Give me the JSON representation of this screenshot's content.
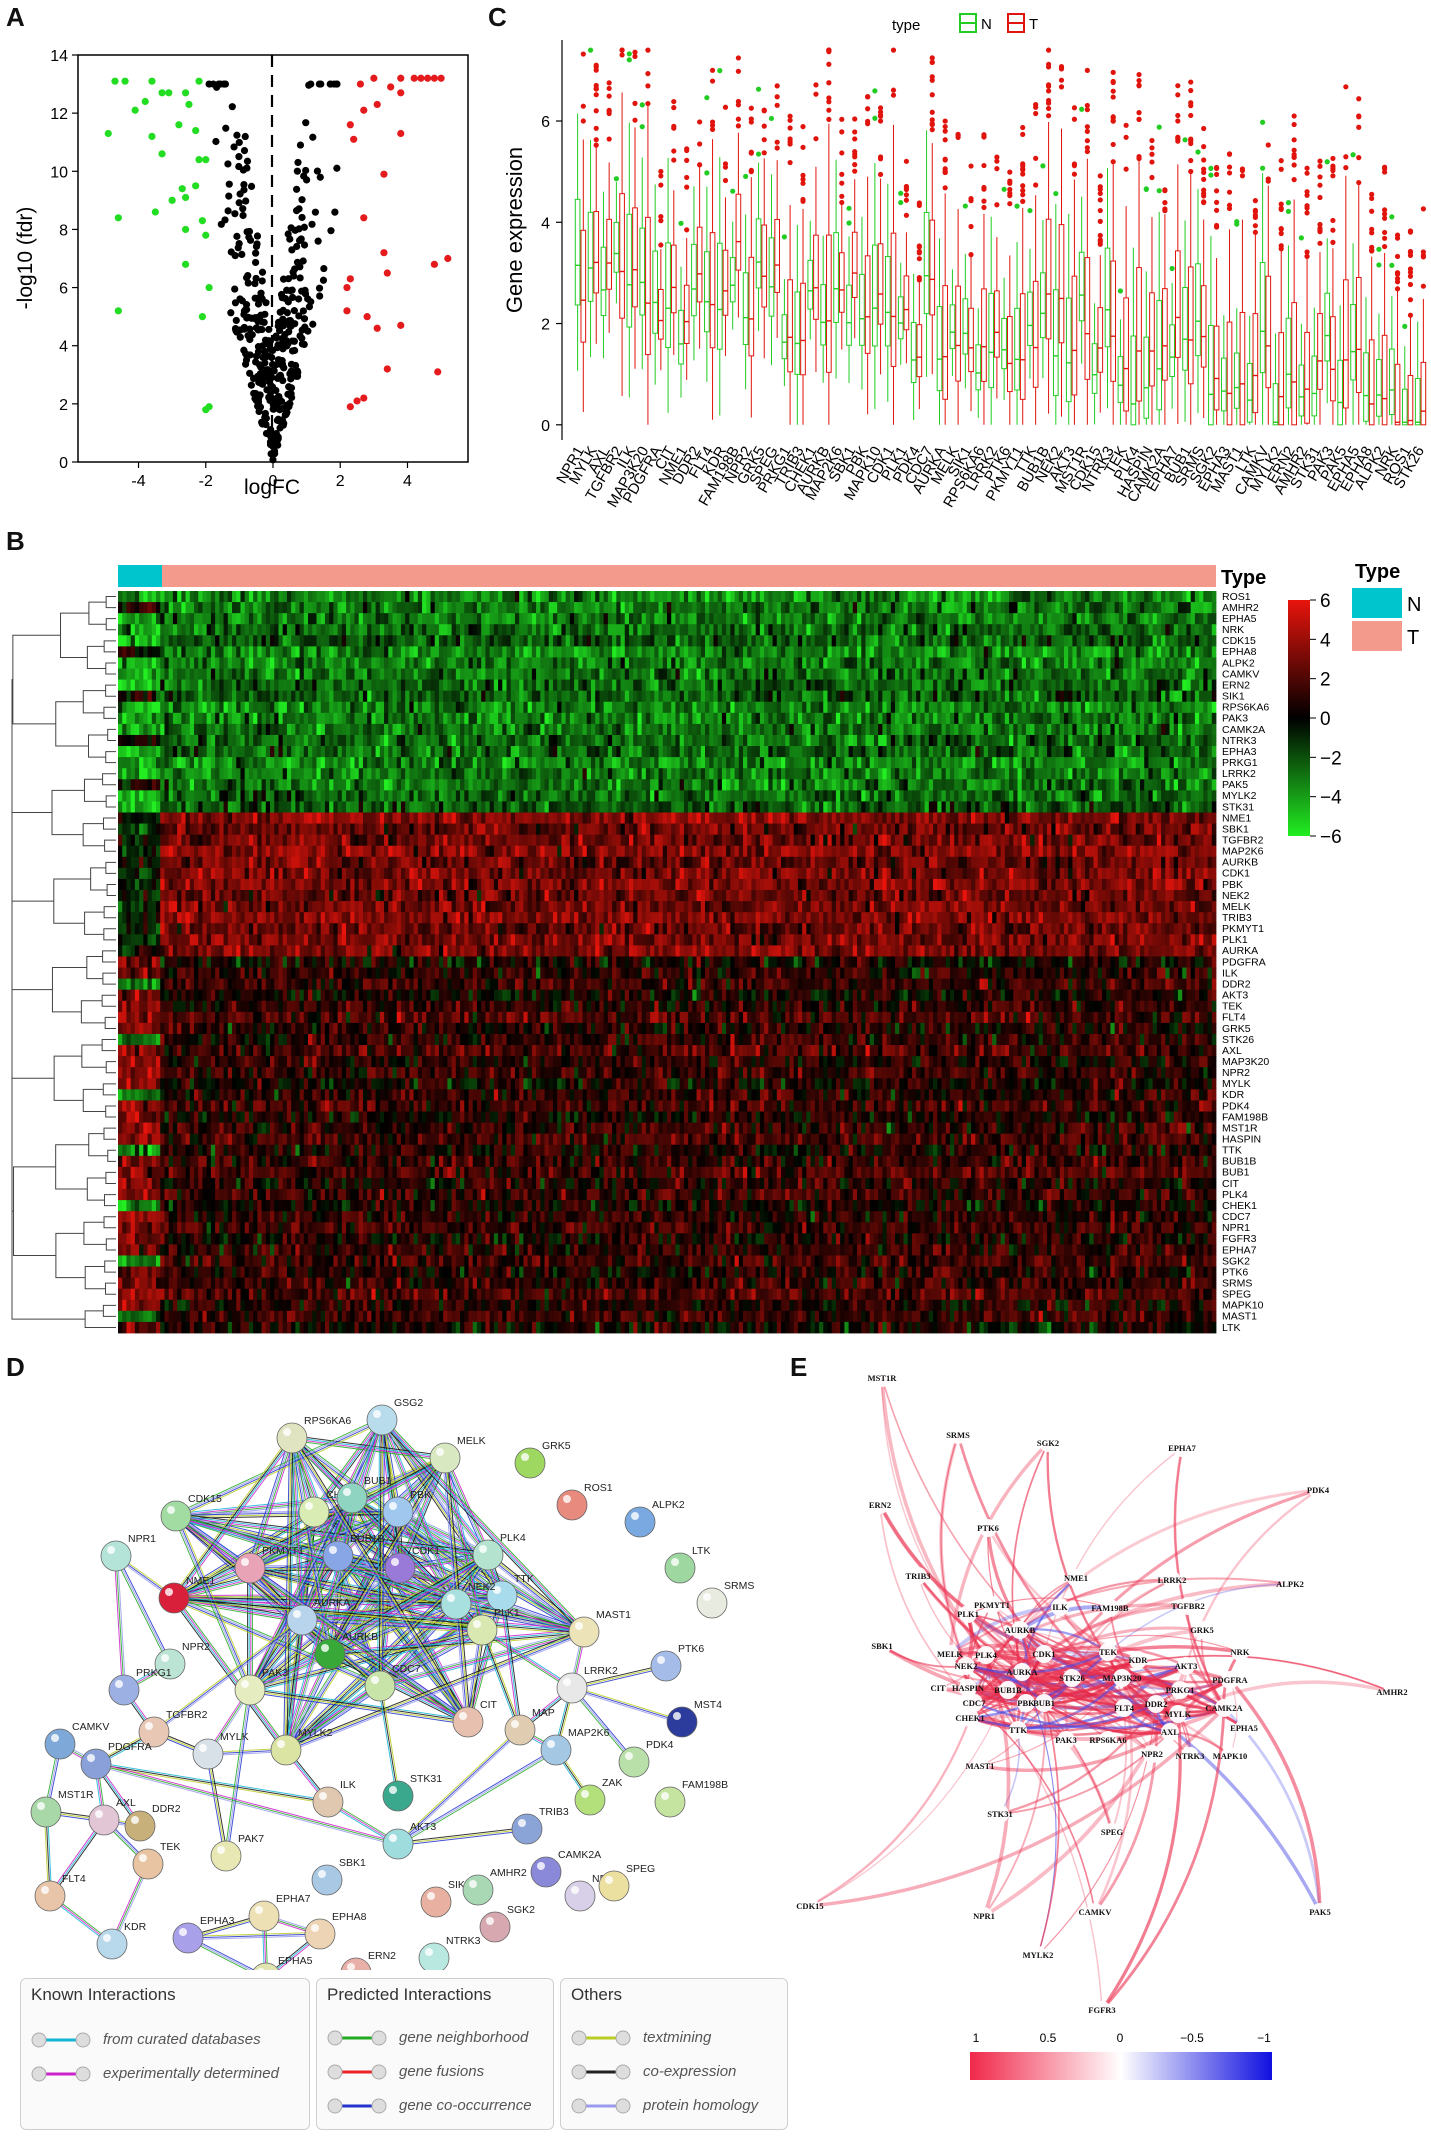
{
  "panels": {
    "a": "A",
    "b": "B",
    "c": "C",
    "d": "D",
    "e": "E"
  },
  "colors": {
    "up": "#e41a1c",
    "down": "#22dd22",
    "ns": "#000000",
    "normal": "#00c5cd",
    "tumor": "#f49a8c",
    "box_n": "#22cc22",
    "box_t": "#e0140c"
  },
  "chart_data": [
    {
      "panel": "A",
      "type": "scatter",
      "xlabel": "logFC",
      "ylabel": "-log10 (fdr)",
      "xlim": [
        -5.8,
        5.8
      ],
      "ylim": [
        0,
        14
      ],
      "xticks": [
        -4,
        -2,
        0,
        2,
        4
      ],
      "yticks": [
        0,
        2,
        4,
        6,
        8,
        10,
        12,
        14
      ],
      "threshold_lines": [
        "logFC = 0 (dashed)"
      ],
      "note": "volcano plot: green = down-regulated, red = up-regulated, black = not significant"
    },
    {
      "panel": "B",
      "type": "heatmap",
      "column_annotation_title": "Type",
      "legend_title": "Type",
      "legend_entries": [
        "N",
        "T"
      ],
      "color_scale_ticks": [
        6,
        4,
        2,
        0,
        -2,
        -4,
        -6
      ],
      "rows": [
        "ROS1",
        "AMHR2",
        "EPHA5",
        "NRK",
        "CDK15",
        "EPHA8",
        "ALPK2",
        "CAMKV",
        "ERN2",
        "SIK1",
        "RPS6KA6",
        "PAK3",
        "CAMK2A",
        "NTRK3",
        "EPHA3",
        "PRKG1",
        "LRRK2",
        "PAK5",
        "MYLK2",
        "STK31",
        "NME1",
        "SBK1",
        "TGFBR2",
        "MAP2K6",
        "AURKB",
        "CDK1",
        "PBK",
        "NEK2",
        "MELK",
        "TRIB3",
        "PKMYT1",
        "PLK1",
        "AURKA",
        "PDGFRA",
        "ILK",
        "DDR2",
        "AKT3",
        "TEK",
        "FLT4",
        "GRK5",
        "STK26",
        "AXL",
        "MAP3K20",
        "NPR2",
        "MYLK",
        "KDR",
        "PDK4",
        "FAM198B",
        "MST1R",
        "HASPIN",
        "TTK",
        "BUB1B",
        "BUB1",
        "CIT",
        "PLK4",
        "CHEK1",
        "CDC7",
        "NPR1",
        "FGFR3",
        "EPHA7",
        "SGK2",
        "PTK6",
        "SRMS",
        "SPEG",
        "MAPK10",
        "MAST1",
        "LTK"
      ],
      "row_groups_expression": "rows 1-20 low (green), rows 21-33 high (red), rows 34-67 mixed"
    },
    {
      "panel": "C",
      "type": "box",
      "legend_title": "type",
      "series": [
        {
          "name": "N"
        },
        {
          "name": "T"
        }
      ],
      "ylabel": "Gene expression",
      "ylim": [
        -0.3,
        7.6
      ],
      "yticks": [
        0,
        2,
        4,
        6
      ],
      "categories": [
        "NPR1",
        "MYLK",
        "AXL",
        "TGFBR2",
        "ILK",
        "MAP3K20",
        "PDGFRA",
        "CIT",
        "NME1",
        "DDR2",
        "FLT4",
        "KDR",
        "FAM198B",
        "NPR2",
        "GRK5",
        "SPEG",
        "PRKG1",
        "TRIB3",
        "CHEK1",
        "AURKB",
        "MAP2K6",
        "SBK1",
        "PBK",
        "MAPK10",
        "CDK1",
        "PLK1",
        "PDK4",
        "CDC7",
        "AURKA",
        "MELK",
        "SIK1",
        "RPS6KA6",
        "LRRK2",
        "PTK6",
        "PKMYT1",
        "TTK",
        "BUB1B",
        "NEK2",
        "AKT3",
        "MST1R",
        "CDK15",
        "NTRK3",
        "TEK",
        "PLK4",
        "HASPIN",
        "CAMK2A",
        "EPHA7",
        "BUB1",
        "SRMS",
        "SGK2",
        "EPHA3",
        "MAST1",
        "LTK",
        "CAMKV",
        "MYLK2",
        "ERN2",
        "AMHR2",
        "STK31",
        "PAK3",
        "PAK5",
        "EPHA5",
        "EPHA8",
        "ALPK2",
        "NRK",
        "ROS1",
        "STK26"
      ]
    },
    {
      "panel": "E",
      "type": "network",
      "color_scale_ticks": [
        "1",
        "0.5",
        "0",
        "−0.5",
        "−1"
      ]
    }
  ],
  "string_network": {
    "nodes": [
      "RPS6KA6",
      "GSG2",
      "MELK",
      "GRK5",
      "ROS1",
      "ALPK2",
      "CDK15",
      "CHEK1",
      "BUB1",
      "PBK",
      "PLK4",
      "LTK",
      "SRMS",
      "BUB1B",
      "CDK1",
      "TTK",
      "NPR1",
      "NME1",
      "PKMYT1",
      "NEK2",
      "PLK1",
      "MAST1",
      "AURKA",
      "AURKB",
      "CDC7",
      "NPR2",
      "PRKG1",
      "PAK3",
      "CIT",
      "LRRK2",
      "PTK6",
      "MST4",
      "TGFBR2",
      "MAP",
      "MAP2K6",
      "PDK4",
      "CAMKV",
      "PDGFRA",
      "MYLK",
      "MYLK2",
      "STK31",
      "ZAK",
      "FAM198B",
      "ILK",
      "TRIB3",
      "MST1R",
      "AXL",
      "DDR2",
      "AKT3",
      "CAMK2A",
      "TEK",
      "PAK7",
      "SBK1",
      "SIK1",
      "AMHR2",
      "NRK",
      "SPEG",
      "FLT4",
      "KDR",
      "EPHA7",
      "EPHA3",
      "EPHA8",
      "ERN2",
      "SGK2",
      "NTRK3",
      "EPHA5",
      "FGFR3"
    ],
    "legend": {
      "known_title": "Known Interactions",
      "known": [
        "from curated databases",
        "experimentally determined"
      ],
      "predicted_title": "Predicted Interactions",
      "predicted": [
        "gene neighborhood",
        "gene fusions",
        "gene co-occurrence"
      ],
      "others_title": "Others",
      "others": [
        "textmining",
        "co-expression",
        "protein homology"
      ]
    }
  },
  "corr_network": {
    "nodes": [
      "MST1R",
      "SRMS",
      "SGK2",
      "EPHA7",
      "PDK4",
      "ERN2",
      "PTK6",
      "TRIB3",
      "NME1",
      "LRRK2",
      "ALPK2",
      "PKMYT1",
      "PLK1",
      "ILK",
      "FAM198B",
      "TGFBR2",
      "GRK5",
      "AURKB",
      "SBK1",
      "MELK",
      "PLK4",
      "CDK1",
      "TEK",
      "KDR",
      "NRK",
      "NEK2",
      "AURKA",
      "STK26",
      "AKT3",
      "CIT",
      "HASPIN",
      "BUB1B",
      "PBK",
      "BUB1",
      "MAP3K20",
      "PRKG1",
      "PDGFRA",
      "AMHR2",
      "CDC7",
      "CHEK1",
      "FLT4",
      "DDR2",
      "MYLK",
      "CAMK2A",
      "EPHA5",
      "TTK",
      "PAK3",
      "AXL",
      "RPS6KA6",
      "NPR2",
      "NTRK3",
      "MAPK10",
      "MAST1",
      "STK31",
      "SPEG",
      "CDK15",
      "NPR1",
      "CAMKV",
      "PAK5",
      "MYLK2",
      "FGFR3"
    ]
  }
}
